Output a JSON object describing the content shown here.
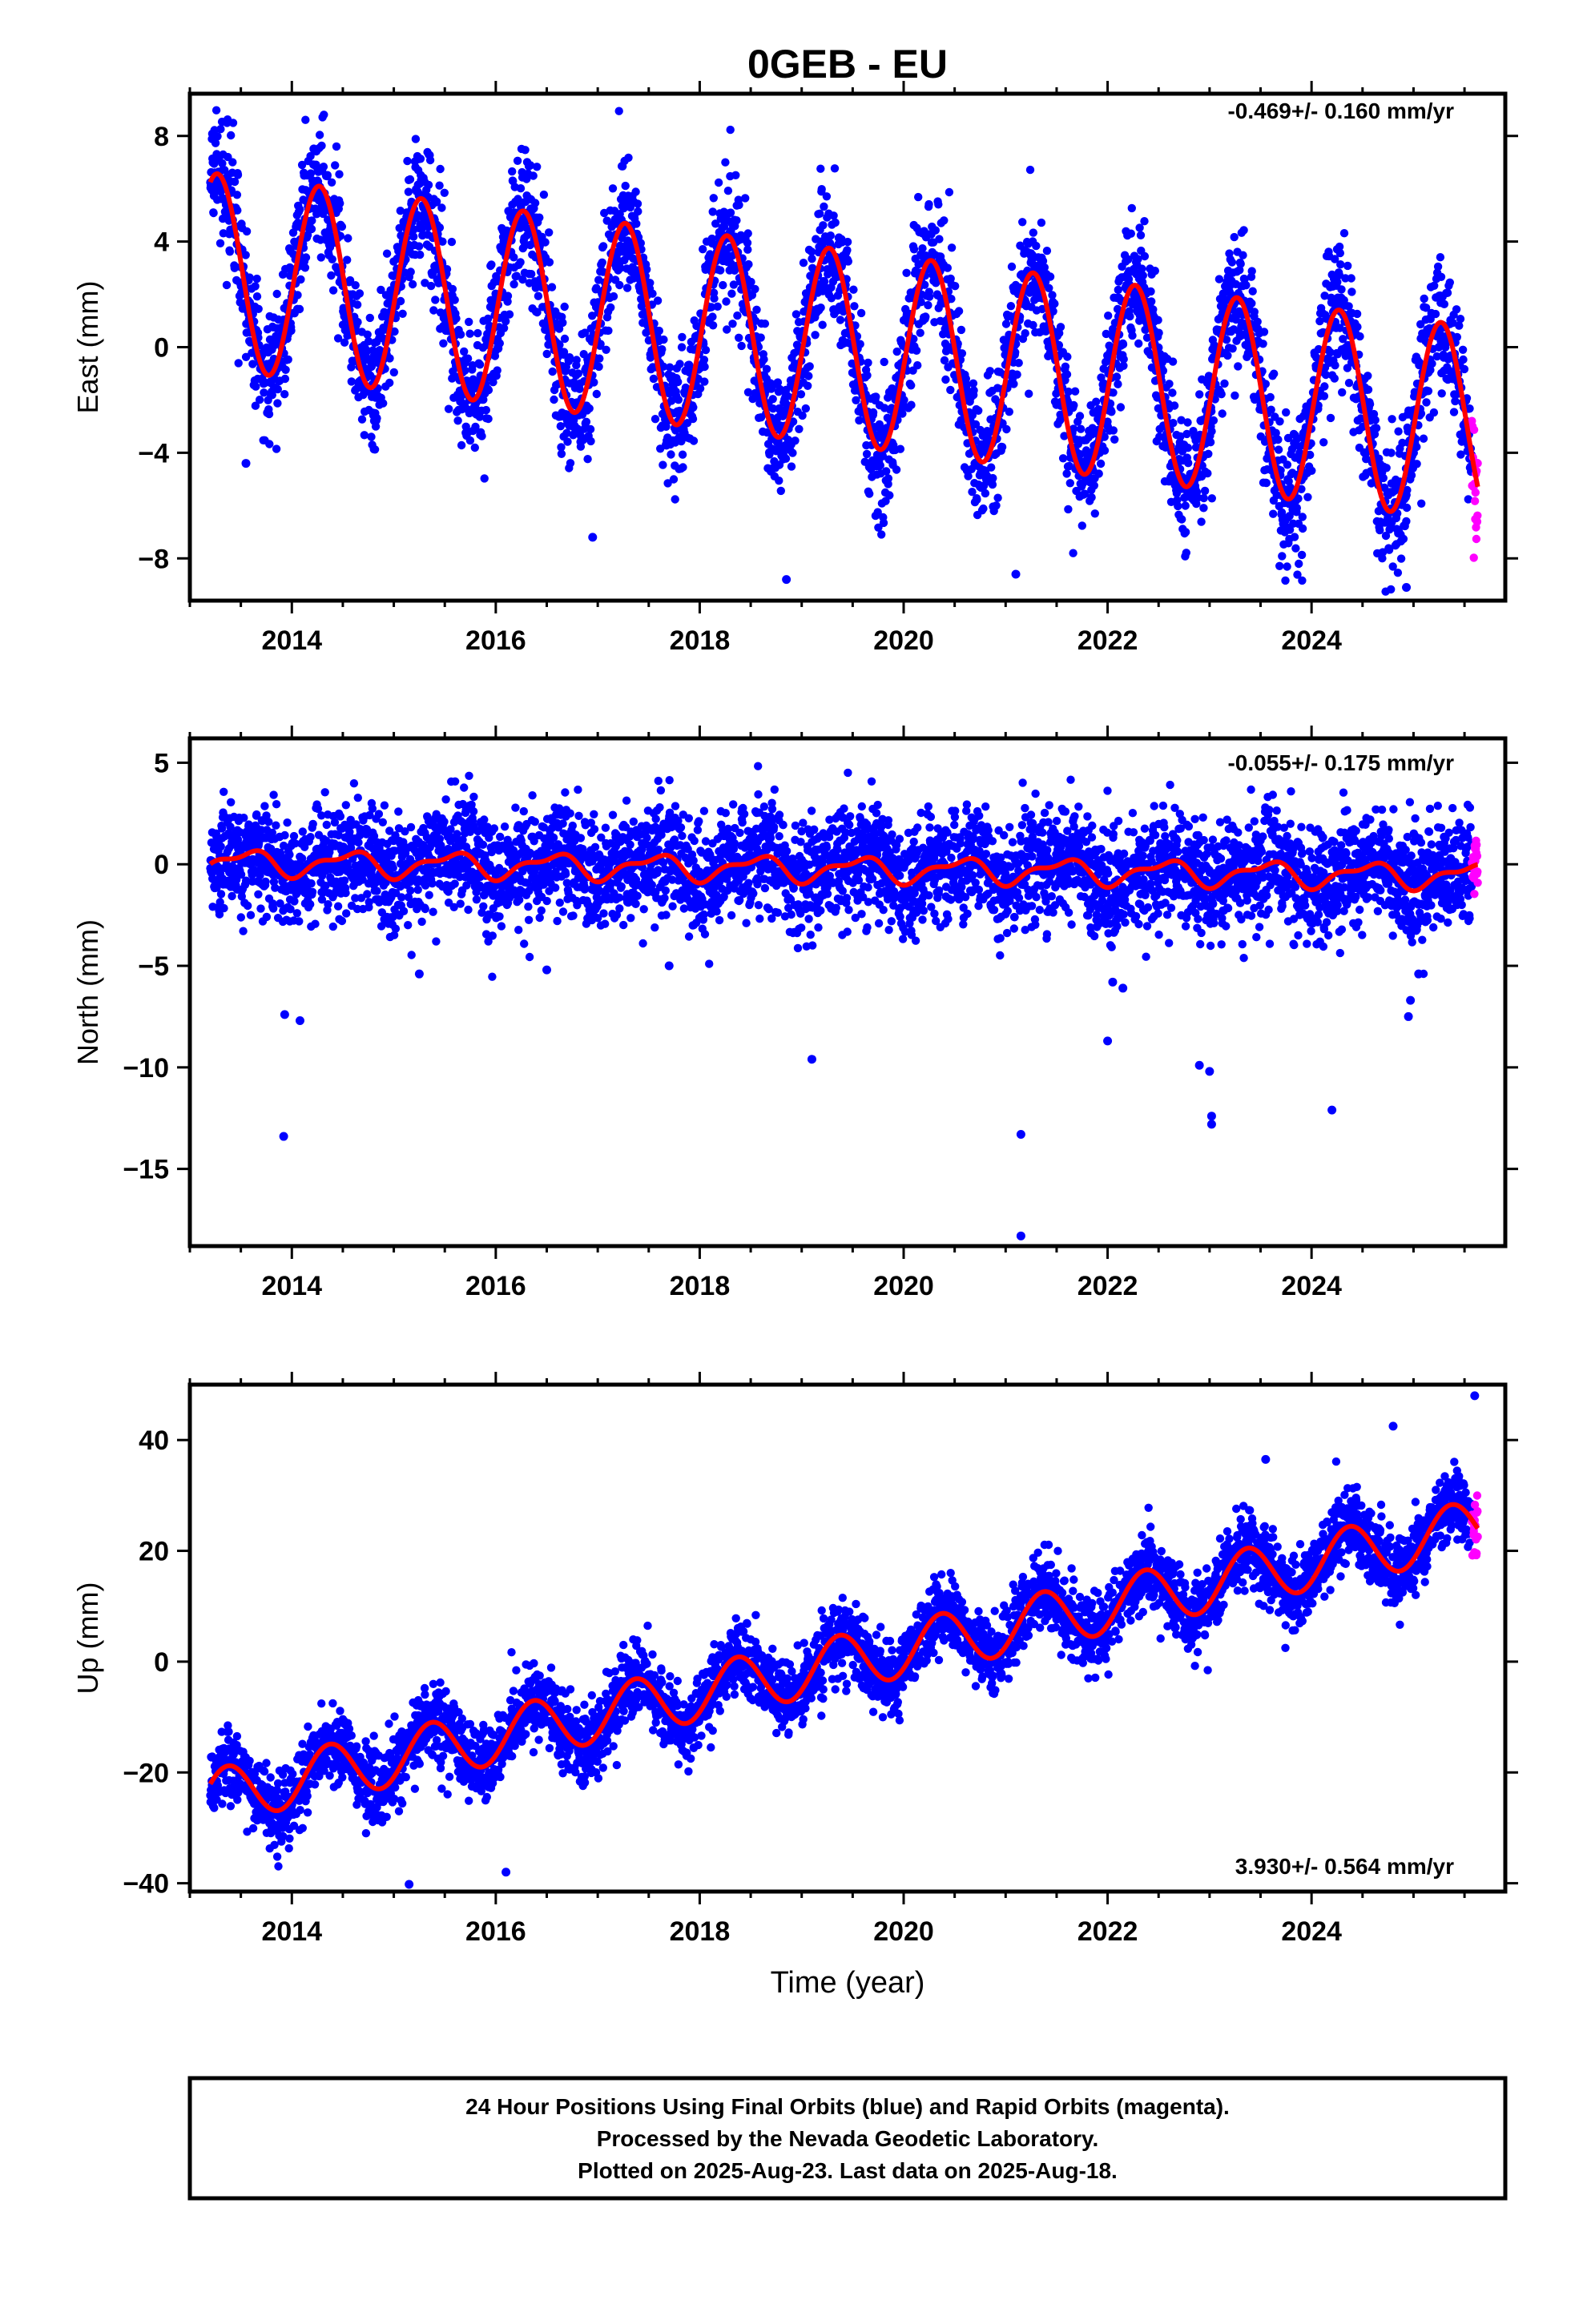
{
  "title": "0GEB - EU",
  "xlabel": "Time (year)",
  "footer": {
    "line1": "24 Hour Positions Using Final Orbits (blue) and Rapid Orbits (magenta).",
    "line2": "Processed by the Nevada Geodetic Laboratory.",
    "line3": "Plotted on 2025-Aug-23. Last data on 2025-Aug-18."
  },
  "colors": {
    "final": "#0000ff",
    "rapid": "#ff00ff",
    "model": "#ff0000",
    "axis": "#000000"
  },
  "chart_data": [
    {
      "type": "scatter",
      "name": "east",
      "ylabel": "East (mm)",
      "rate": "-0.469+/- 0.160 mm/yr",
      "xlim": [
        2013.0,
        2025.9
      ],
      "ylim": [
        -9.6,
        9.6
      ],
      "xticks": [
        2014,
        2016,
        2018,
        2020,
        2022,
        2024
      ],
      "yticks": [
        8,
        4,
        0,
        -4,
        -8
      ],
      "ytick_labels": [
        "8",
        "4",
        "0",
        "−4",
        "−8"
      ],
      "x_start": 2013.2,
      "x_end": 2025.63,
      "rapid_start": 2025.57,
      "model": {
        "offset": 2.9,
        "trend": -0.469,
        "amp_annual": 3.7,
        "phase_annual": 0.02,
        "amp_semi": 0.0,
        "phase_semi": 0.0
      },
      "scatter_sd": 1.25,
      "outliers": [
        [
          2013.55,
          -4.4
        ],
        [
          2018.85,
          -8.8
        ],
        [
          2024.93,
          -9.1
        ],
        [
          2021.1,
          -8.6
        ],
        [
          2016.95,
          -7.2
        ]
      ]
    },
    {
      "type": "scatter",
      "name": "north",
      "ylabel": "North (mm)",
      "rate": "-0.055+/- 0.175 mm/yr",
      "xlim": [
        2013.0,
        2025.9
      ],
      "ylim": [
        -18.8,
        6.2
      ],
      "xticks": [
        2014,
        2016,
        2018,
        2020,
        2022,
        2024
      ],
      "yticks": [
        5,
        0,
        -5,
        -10,
        -15
      ],
      "ytick_labels": [
        "5",
        "0",
        "−5",
        "−10",
        "−15"
      ],
      "x_start": 2013.2,
      "x_end": 2025.63,
      "rapid_start": 2025.57,
      "model": {
        "offset": 0.1,
        "trend": -0.055,
        "amp_annual": 0.55,
        "phase_annual": 0.3,
        "amp_semi": 0.25,
        "phase_semi": 0.1
      },
      "scatter_sd": 1.35,
      "outliers": [
        [
          2013.92,
          -13.4
        ],
        [
          2013.93,
          -7.4
        ],
        [
          2014.08,
          -7.7
        ],
        [
          2015.25,
          -5.4
        ],
        [
          2019.1,
          -9.6
        ],
        [
          2021.15,
          -13.3
        ],
        [
          2021.15,
          -18.3
        ],
        [
          2022.0,
          -8.7
        ],
        [
          2022.05,
          -5.8
        ],
        [
          2022.15,
          -6.1
        ],
        [
          2022.9,
          -9.9
        ],
        [
          2023.0,
          -10.2
        ],
        [
          2023.02,
          -12.4
        ],
        [
          2023.02,
          -12.8
        ],
        [
          2024.2,
          -12.1
        ],
        [
          2024.95,
          -7.5
        ],
        [
          2024.97,
          -6.7
        ],
        [
          2025.05,
          -5.4
        ],
        [
          2016.5,
          -5.2
        ],
        [
          2017.7,
          -5.0
        ]
      ]
    },
    {
      "type": "scatter",
      "name": "up",
      "ylabel": "Up (mm)",
      "rate": "3.930+/- 0.564 mm/yr",
      "xlim": [
        2013.0,
        2025.9
      ],
      "ylim": [
        -41.5,
        50
      ],
      "xticks": [
        2014,
        2016,
        2018,
        2020,
        2022,
        2024
      ],
      "yticks": [
        40,
        20,
        0,
        -20,
        -40
      ],
      "ytick_labels": [
        "40",
        "20",
        "0",
        "−20",
        "−40"
      ],
      "x_start": 2013.2,
      "x_end": 2025.63,
      "rapid_start": 2025.57,
      "model": {
        "offset": -24.5,
        "trend": 3.93,
        "amp_annual": 5.0,
        "phase_annual": 0.12,
        "amp_semi": 0.0,
        "phase_semi": 0.0
      },
      "scatter_sd": 3.3,
      "outliers": [
        [
          2015.15,
          -40.2
        ],
        [
          2016.1,
          -38.0
        ],
        [
          2025.6,
          48.0
        ],
        [
          2023.55,
          36.5
        ],
        [
          2024.8,
          42.5
        ]
      ]
    }
  ]
}
